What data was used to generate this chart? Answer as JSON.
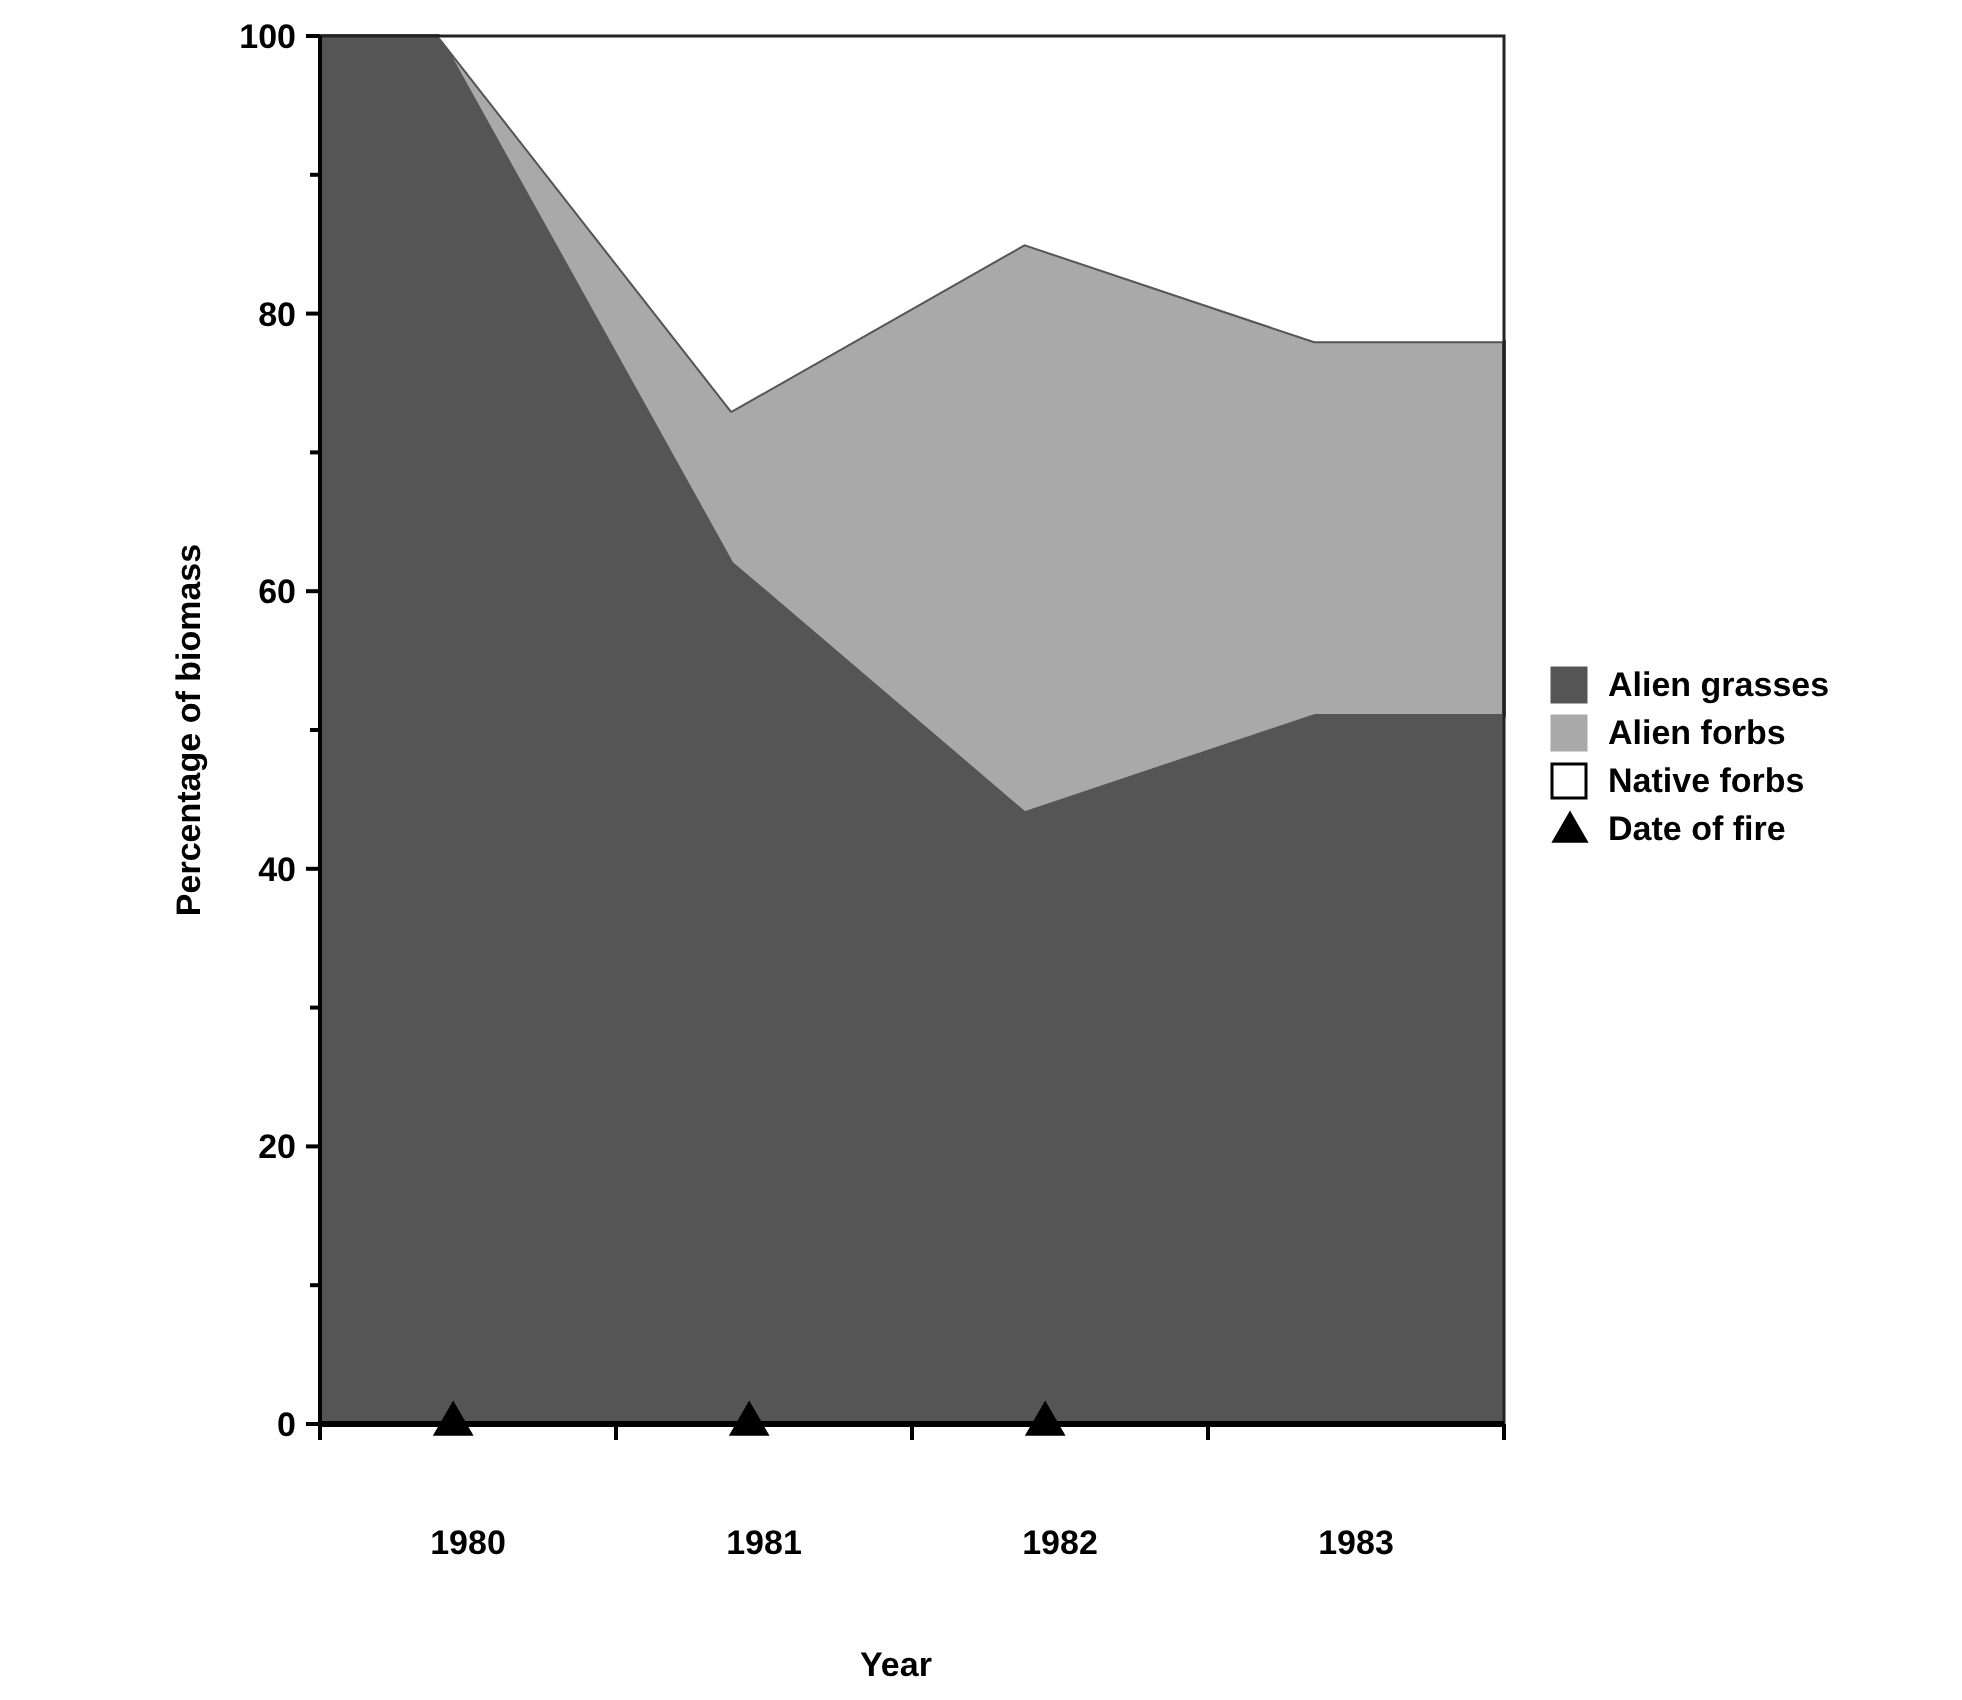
{
  "chart_data": {
    "type": "area",
    "stacked": true,
    "xlabel": "Year",
    "ylabel": "Percentage of biomass",
    "x": [
      1979.5,
      1979.9,
      1980.89,
      1981.88,
      1982.86,
      1983.5
    ],
    "series": [
      {
        "name": "Alien grasses",
        "color": "#555555",
        "values": [
          100,
          100,
          62,
          44,
          51,
          51
        ]
      },
      {
        "name": "Alien forbs",
        "color": "#a9a9a9",
        "values": [
          0,
          0,
          11,
          41,
          27,
          27
        ]
      },
      {
        "name": "Native forbs",
        "color": "#ffffff",
        "values": [
          0,
          0,
          27,
          15,
          22,
          22
        ]
      },
      {
        "name": "Date of fire",
        "type": "scatter",
        "marker": "triangle",
        "color": "#000000",
        "x": [
          1979.95,
          1980.95,
          1981.95
        ],
        "values": [
          0,
          0,
          0
        ]
      }
    ],
    "xlim": [
      1979.5,
      1983.5
    ],
    "xticks": [
      {
        "value": 1979.5,
        "label": null
      },
      {
        "value": 1980,
        "label": "1980"
      },
      {
        "value": 1980.5,
        "label": null
      },
      {
        "value": 1981,
        "label": "1981"
      },
      {
        "value": 1981.5,
        "label": null
      },
      {
        "value": 1982,
        "label": "1982"
      },
      {
        "value": 1982.5,
        "label": null
      },
      {
        "value": 1983,
        "label": "1983"
      },
      {
        "value": 1983.5,
        "label": null
      }
    ],
    "ylim": [
      0,
      100
    ],
    "yticks": [
      0,
      {
        "value": 10,
        "label": null
      },
      20,
      {
        "value": 30,
        "label": null
      },
      40,
      {
        "value": 50,
        "label": null
      },
      60,
      {
        "value": 70,
        "label": null
      },
      80,
      {
        "value": 90,
        "label": null
      },
      100
    ],
    "grid": false,
    "legend": "right"
  }
}
